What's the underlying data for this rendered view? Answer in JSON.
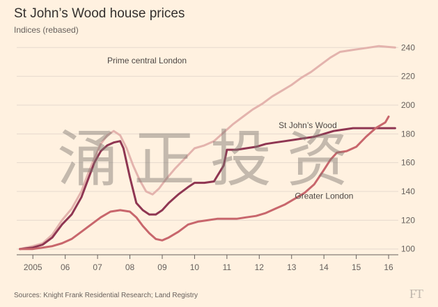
{
  "title": "St John’s Wood house prices",
  "subtitle": "Indices (rebased)",
  "source": "Sources: Knight Frank Residential Research; Land Registry",
  "logo": "FT",
  "watermark": "涌正投资",
  "colors": {
    "background": "#fff1e0",
    "prime_central_london": "#e3b3ad",
    "st_johns_wood": "#8f3652",
    "greater_london": "#c8666c",
    "grid": "#e6d9ce",
    "axis": "#66605c"
  },
  "chart_data": {
    "type": "line",
    "xlim": [
      2004.5,
      2016.3
    ],
    "ylim": [
      96,
      244
    ],
    "grid": true,
    "x_ticks": [
      {
        "value": 2005,
        "label": "2005"
      },
      {
        "value": 2006,
        "label": "06"
      },
      {
        "value": 2007,
        "label": "07"
      },
      {
        "value": 2008,
        "label": "08"
      },
      {
        "value": 2009,
        "label": "09"
      },
      {
        "value": 2010,
        "label": "10"
      },
      {
        "value": 2011,
        "label": "11"
      },
      {
        "value": 2012,
        "label": "12"
      },
      {
        "value": 2013,
        "label": "13"
      },
      {
        "value": 2014,
        "label": "14"
      },
      {
        "value": 2015,
        "label": "15"
      },
      {
        "value": 2016,
        "label": "16"
      }
    ],
    "y_ticks": [
      {
        "value": 100,
        "label": "100"
      },
      {
        "value": 120,
        "label": "120"
      },
      {
        "value": 140,
        "label": "140"
      },
      {
        "value": 160,
        "label": "160"
      },
      {
        "value": 180,
        "label": "180"
      },
      {
        "value": 200,
        "label": "200"
      },
      {
        "value": 220,
        "label": "220"
      },
      {
        "value": 240,
        "label": "240"
      }
    ],
    "series": [
      {
        "name": "Prime central London",
        "color": "#e3b3ad",
        "label_pos": [
          2007.3,
          229
        ],
        "points": [
          [
            2004.6,
            100
          ],
          [
            2005.0,
            102
          ],
          [
            2005.3,
            104
          ],
          [
            2005.6,
            110
          ],
          [
            2005.9,
            120
          ],
          [
            2006.2,
            128
          ],
          [
            2006.5,
            140
          ],
          [
            2006.7,
            152
          ],
          [
            2006.9,
            163
          ],
          [
            2007.1,
            173
          ],
          [
            2007.3,
            179
          ],
          [
            2007.5,
            182
          ],
          [
            2007.7,
            179
          ],
          [
            2007.9,
            170
          ],
          [
            2008.1,
            158
          ],
          [
            2008.3,
            148
          ],
          [
            2008.5,
            140
          ],
          [
            2008.7,
            138
          ],
          [
            2008.9,
            142
          ],
          [
            2009.1,
            148
          ],
          [
            2009.4,
            156
          ],
          [
            2009.7,
            163
          ],
          [
            2010.0,
            170
          ],
          [
            2010.3,
            172
          ],
          [
            2010.6,
            175
          ],
          [
            2010.9,
            181
          ],
          [
            2011.2,
            187
          ],
          [
            2011.5,
            192
          ],
          [
            2011.8,
            197
          ],
          [
            2012.1,
            201
          ],
          [
            2012.4,
            206
          ],
          [
            2012.7,
            210
          ],
          [
            2013.0,
            214
          ],
          [
            2013.3,
            219
          ],
          [
            2013.6,
            223
          ],
          [
            2013.9,
            228
          ],
          [
            2014.2,
            233
          ],
          [
            2014.5,
            237
          ],
          [
            2014.8,
            238
          ],
          [
            2015.1,
            239
          ],
          [
            2015.4,
            240
          ],
          [
            2015.7,
            241
          ],
          [
            2016.2,
            240
          ]
        ]
      },
      {
        "name": "St John’s Wood",
        "color": "#8f3652",
        "label_pos": [
          2012.6,
          184
        ],
        "points": [
          [
            2004.6,
            100
          ],
          [
            2005.0,
            101
          ],
          [
            2005.3,
            103
          ],
          [
            2005.6,
            108
          ],
          [
            2005.9,
            117
          ],
          [
            2006.2,
            124
          ],
          [
            2006.5,
            136
          ],
          [
            2006.7,
            148
          ],
          [
            2006.9,
            160
          ],
          [
            2007.1,
            168
          ],
          [
            2007.3,
            172
          ],
          [
            2007.5,
            174
          ],
          [
            2007.7,
            175
          ],
          [
            2007.8,
            170
          ],
          [
            2008.0,
            150
          ],
          [
            2008.2,
            132
          ],
          [
            2008.4,
            127
          ],
          [
            2008.6,
            124
          ],
          [
            2008.8,
            124
          ],
          [
            2009.0,
            127
          ],
          [
            2009.2,
            132
          ],
          [
            2009.5,
            138
          ],
          [
            2009.8,
            143
          ],
          [
            2010.0,
            146
          ],
          [
            2010.3,
            146
          ],
          [
            2010.6,
            147
          ],
          [
            2010.9,
            158
          ],
          [
            2011.0,
            169
          ],
          [
            2011.3,
            169
          ],
          [
            2011.6,
            170
          ],
          [
            2011.9,
            171
          ],
          [
            2012.2,
            173
          ],
          [
            2012.5,
            174
          ],
          [
            2012.8,
            175
          ],
          [
            2013.1,
            176
          ],
          [
            2013.4,
            177
          ],
          [
            2013.7,
            178
          ],
          [
            2014.0,
            180
          ],
          [
            2014.3,
            182
          ],
          [
            2014.6,
            183
          ],
          [
            2014.9,
            184
          ],
          [
            2015.2,
            184
          ],
          [
            2015.5,
            184
          ],
          [
            2016.2,
            184
          ]
        ]
      },
      {
        "name": "Greater London",
        "color": "#c8666c",
        "label_pos": [
          2013.1,
          135
        ],
        "points": [
          [
            2004.6,
            100
          ],
          [
            2005.0,
            100
          ],
          [
            2005.3,
            101
          ],
          [
            2005.6,
            102
          ],
          [
            2005.9,
            104
          ],
          [
            2006.2,
            107
          ],
          [
            2006.5,
            112
          ],
          [
            2006.8,
            117
          ],
          [
            2007.1,
            122
          ],
          [
            2007.4,
            126
          ],
          [
            2007.7,
            127
          ],
          [
            2008.0,
            126
          ],
          [
            2008.2,
            122
          ],
          [
            2008.4,
            116
          ],
          [
            2008.6,
            111
          ],
          [
            2008.8,
            107
          ],
          [
            2009.0,
            106
          ],
          [
            2009.2,
            108
          ],
          [
            2009.5,
            112
          ],
          [
            2009.8,
            117
          ],
          [
            2010.1,
            119
          ],
          [
            2010.4,
            120
          ],
          [
            2010.7,
            121
          ],
          [
            2011.0,
            121
          ],
          [
            2011.3,
            121
          ],
          [
            2011.6,
            122
          ],
          [
            2011.9,
            123
          ],
          [
            2012.2,
            125
          ],
          [
            2012.5,
            128
          ],
          [
            2012.8,
            131
          ],
          [
            2013.1,
            135
          ],
          [
            2013.4,
            139
          ],
          [
            2013.7,
            145
          ],
          [
            2014.0,
            155
          ],
          [
            2014.2,
            162
          ],
          [
            2014.4,
            167
          ],
          [
            2014.7,
            168
          ],
          [
            2015.0,
            171
          ],
          [
            2015.3,
            178
          ],
          [
            2015.6,
            184
          ],
          [
            2015.9,
            188
          ],
          [
            2016.0,
            192
          ]
        ]
      }
    ]
  }
}
